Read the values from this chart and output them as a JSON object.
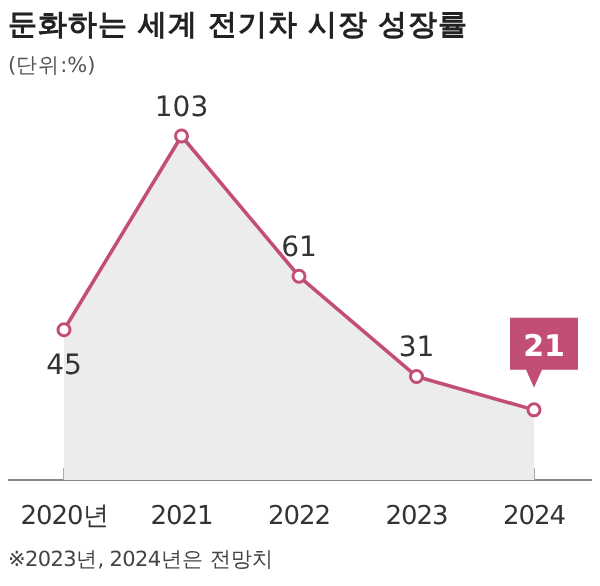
{
  "chart_data": {
    "type": "area",
    "title": "둔화하는 세계 전기차 시장 성장률",
    "subtitle": "(단위:%)",
    "categories": [
      "2020년",
      "2021",
      "2022",
      "2023",
      "2024"
    ],
    "series": [
      {
        "color": "#c24d76",
        "values": [
          45,
          103,
          61,
          31,
          21
        ]
      }
    ],
    "marker": "circle",
    "data_labels": true,
    "annotations": [
      "※2023년, 2024년은 전망치"
    ]
  }
}
